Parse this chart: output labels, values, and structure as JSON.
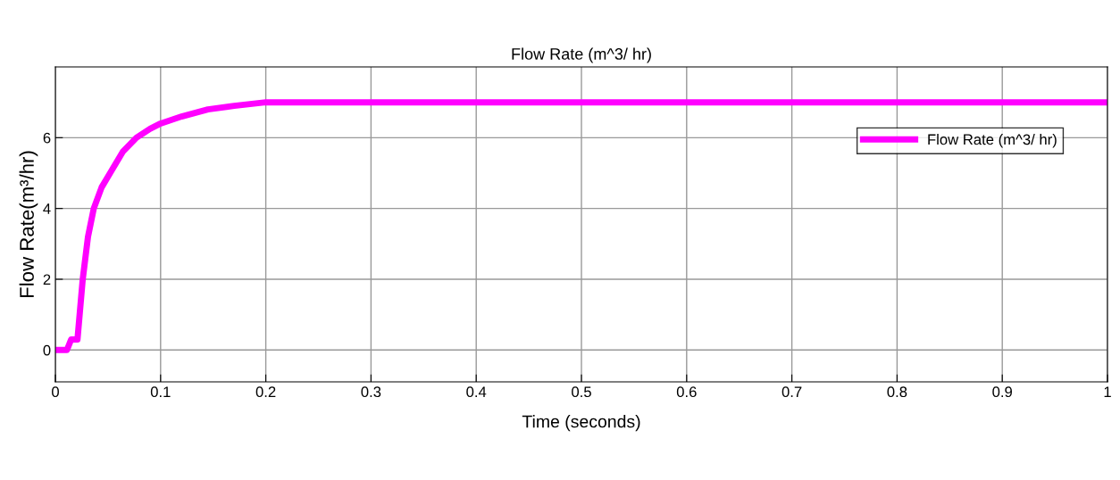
{
  "chart_data": {
    "type": "line",
    "title": "Flow Rate (m^3/ hr)",
    "xlabel": "Time (seconds)",
    "ylabel": "Flow Rate(m³/hr)",
    "x": [
      0,
      0.011,
      0.015,
      0.021,
      0.026,
      0.031,
      0.0365,
      0.044,
      0.052,
      0.064,
      0.077,
      0.09,
      0.1,
      0.12,
      0.145,
      0.17,
      0.2,
      0.3,
      0.5,
      0.8,
      1.0
    ],
    "series": [
      {
        "name": "Flow Rate (m^3/ hr)",
        "color": "#ff00ff",
        "values": [
          0,
          0,
          0.3,
          0.3,
          2.0,
          3.2,
          4.0,
          4.6,
          5.0,
          5.6,
          6.0,
          6.25,
          6.4,
          6.6,
          6.8,
          6.9,
          7.0,
          7.0,
          7.0,
          7.0,
          7.0
        ]
      }
    ],
    "xlim": [
      0,
      1
    ],
    "ylim": [
      -0.9,
      8
    ],
    "xticks": [
      0,
      0.1,
      0.2,
      0.3,
      0.4,
      0.5,
      0.6,
      0.7,
      0.8,
      0.9,
      1
    ],
    "yticks": [
      0,
      2,
      4,
      6
    ],
    "grid": true,
    "legend": "top right",
    "line_style": "solid",
    "marker": "none"
  }
}
